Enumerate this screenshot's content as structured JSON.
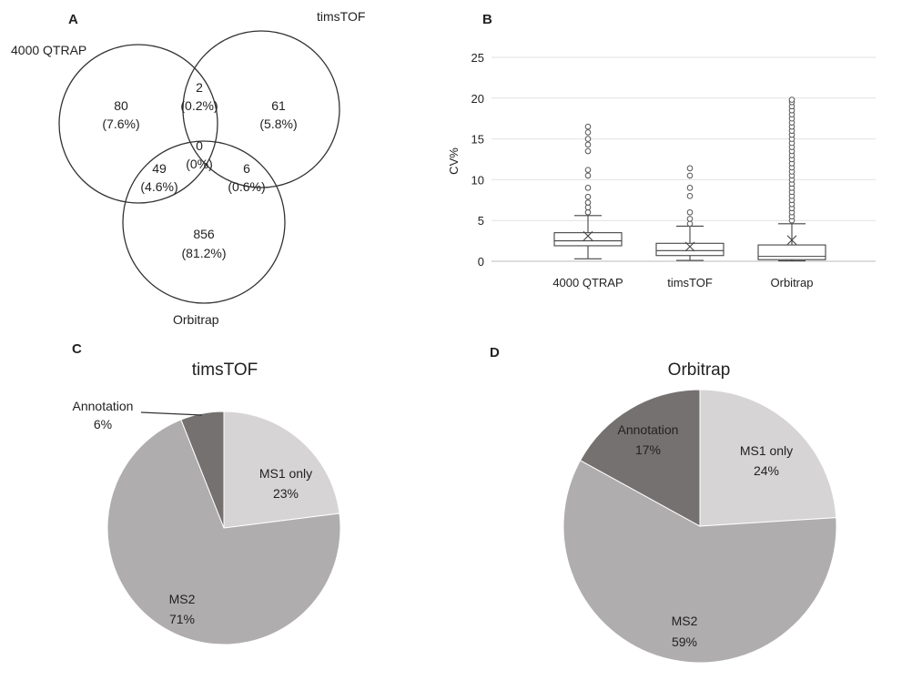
{
  "panels": {
    "a": "A",
    "b": "B",
    "c": "C",
    "d": "D"
  },
  "venn": {
    "sets": [
      "4000 QTRAP",
      "timsTOF",
      "Orbitrap"
    ],
    "regions": [
      {
        "count": "80",
        "pct": "(7.6%)"
      },
      {
        "count": "2",
        "pct": "(0.2%)"
      },
      {
        "count": "61",
        "pct": "(5.8%)"
      },
      {
        "count": "0",
        "pct": "(0%)"
      },
      {
        "count": "49",
        "pct": "(4.6%)"
      },
      {
        "count": "6",
        "pct": "(0.6%)"
      },
      {
        "count": "856",
        "pct": "(81.2%)"
      }
    ]
  },
  "chart_data": [
    {
      "type": "box",
      "ylabel": "CV%",
      "ylim": [
        0,
        25
      ],
      "yticks": [
        "0",
        "5",
        "10",
        "15",
        "20",
        "25"
      ],
      "grid": true,
      "categories": [
        "4000 QTRAP",
        "timsTOF",
        "Orbitrap"
      ],
      "boxes": [
        {
          "whisker_low": 0.3,
          "q1": 1.9,
          "median": 2.5,
          "q3": 3.5,
          "whisker_high": 5.6,
          "mean": 3.1,
          "outliers": [
            6.0,
            6.6,
            7.2,
            7.9,
            9.0,
            10.5,
            11.2,
            13.5,
            14.3,
            15.0,
            15.8,
            16.5
          ]
        },
        {
          "whisker_low": 0.1,
          "q1": 0.7,
          "median": 1.3,
          "q3": 2.2,
          "whisker_high": 4.3,
          "mean": 1.8,
          "outliers": [
            4.6,
            5.2,
            6.0,
            8.0,
            9.0,
            10.5,
            11.4
          ]
        },
        {
          "whisker_low": 0.05,
          "q1": 0.2,
          "median": 0.6,
          "q3": 2.0,
          "whisker_high": 4.6,
          "mean": 2.6,
          "outliers": [
            5.0,
            5.5,
            6.0,
            6.5,
            7.0,
            7.5,
            8.0,
            8.5,
            9.0,
            9.5,
            10.0,
            10.5,
            11.0,
            11.5,
            12.0,
            12.5,
            13.0,
            13.5,
            14.0,
            14.5,
            15.0,
            15.5,
            16.0,
            16.5,
            17.0,
            17.5,
            18.0,
            18.5,
            19.0,
            19.5,
            19.8
          ]
        }
      ]
    },
    {
      "type": "pie",
      "title": "timsTOF",
      "slices": [
        {
          "label": "MS1 only",
          "value": 23,
          "display": "23%",
          "color": "#d6d4d4"
        },
        {
          "label": "MS2",
          "value": 71,
          "display": "71%",
          "color": "#afadad"
        },
        {
          "label": "Annotation",
          "value": 6,
          "display": "6%",
          "color": "#757170"
        }
      ]
    },
    {
      "type": "pie",
      "title": "Orbitrap",
      "slices": [
        {
          "label": "MS1 only",
          "value": 24,
          "display": "24%",
          "color": "#d6d4d4"
        },
        {
          "label": "MS2",
          "value": 59,
          "display": "59%",
          "color": "#afadad"
        },
        {
          "label": "Annotation",
          "value": 17,
          "display": "17%",
          "color": "#757170"
        }
      ]
    }
  ]
}
